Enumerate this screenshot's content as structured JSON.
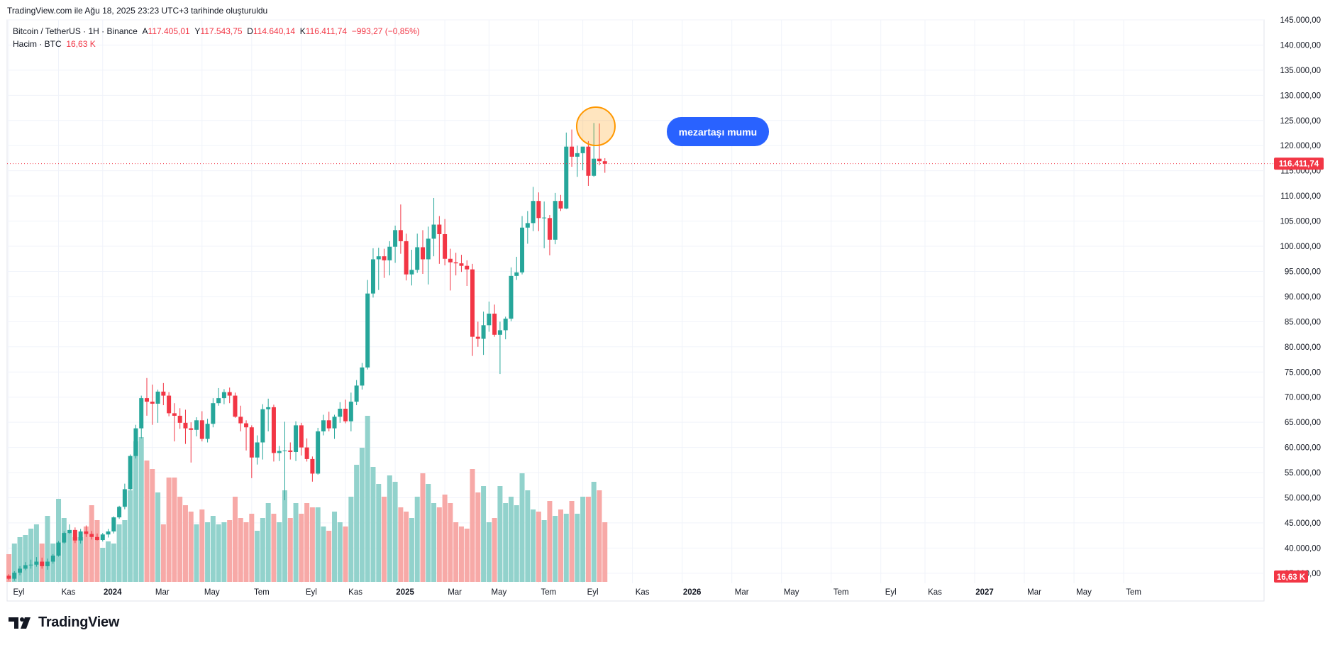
{
  "header": {
    "created_note": "TradingView.com ile Ağu 18, 2025 23:23 UTC+3 tarihinde oluşturuldu"
  },
  "legend": {
    "symbol": "Bitcoin / TetherUS · 1H · Binance",
    "o_label": "A",
    "o_value": "117.405,01",
    "h_label": "Y",
    "h_value": "117.543,75",
    "l_label": "D",
    "l_value": "114.640,14",
    "c_label": "K",
    "c_value": "116.411,74",
    "change": "−993,27 (−0,85%)",
    "volume_label": "Hacim · BTC",
    "volume_value": "16,63 K"
  },
  "annotation": {
    "label": "mezartaşı mumu"
  },
  "price_tag": "116.411,74",
  "volume_tag": "16,63 K",
  "brand": {
    "name": "TradingView"
  },
  "colors": {
    "up": "#26a69a",
    "down": "#f23645",
    "up_volume": "#92d2cc",
    "down_volume": "#f7a9a7",
    "callout": "#2962ff",
    "highlight": "#ff9800"
  },
  "chart_data": {
    "type": "candlestick",
    "price_range": [
      33000,
      145000
    ],
    "y_ticks": [
      "35.000,00",
      "40.000,00",
      "45.000,00",
      "50.000,00",
      "55.000,00",
      "60.000,00",
      "65.000,00",
      "70.000,00",
      "75.000,00",
      "80.000,00",
      "85.000,00",
      "90.000,00",
      "95.000,00",
      "100.000,00",
      "105.000,00",
      "110.000,00",
      "115.000,00",
      "120.000,00",
      "125.000,00",
      "130.000,00",
      "135.000,00",
      "140.000,00",
      "145.000,00"
    ],
    "y_tick_values": [
      35000,
      40000,
      45000,
      50000,
      55000,
      60000,
      65000,
      70000,
      75000,
      80000,
      85000,
      90000,
      95000,
      100000,
      105000,
      110000,
      115000,
      120000,
      125000,
      130000,
      135000,
      140000,
      145000
    ],
    "x_labels": [
      {
        "label": "Eyl",
        "i": 0
      },
      {
        "label": "Kas",
        "i": 9
      },
      {
        "label": "2024",
        "i": 17,
        "bold": true
      },
      {
        "label": "Mar",
        "i": 26
      },
      {
        "label": "May",
        "i": 35
      },
      {
        "label": "Tem",
        "i": 44
      },
      {
        "label": "Eyl",
        "i": 53
      },
      {
        "label": "Kas",
        "i": 61
      },
      {
        "label": "2025",
        "i": 70,
        "bold": true
      },
      {
        "label": "Mar",
        "i": 79
      },
      {
        "label": "May",
        "i": 87
      },
      {
        "label": "Tem",
        "i": 96
      },
      {
        "label": "Eyl",
        "i": 104
      },
      {
        "label": "Kas",
        "i": 113
      },
      {
        "label": "2026",
        "i": 122,
        "bold": true
      },
      {
        "label": "Mar",
        "i": 131
      },
      {
        "label": "May",
        "i": 140
      },
      {
        "label": "Tem",
        "i": 149
      },
      {
        "label": "Eyl",
        "i": 158
      },
      {
        "label": "Kas",
        "i": 166
      },
      {
        "label": "2027",
        "i": 175,
        "bold": true
      },
      {
        "label": "Mar",
        "i": 184
      },
      {
        "label": "May",
        "i": 193
      },
      {
        "label": "Tem",
        "i": 202
      }
    ],
    "last_price": 116411.74,
    "volume_max": 56,
    "candles": [
      [
        34500,
        34800,
        33600,
        33900,
        13
      ],
      [
        33900,
        35400,
        33500,
        35100,
        18
      ],
      [
        35100,
        36400,
        34600,
        35900,
        21
      ],
      [
        35900,
        37200,
        35600,
        36600,
        22
      ],
      [
        36600,
        37700,
        35900,
        36700,
        25
      ],
      [
        36700,
        38200,
        36300,
        37300,
        27
      ],
      [
        37300,
        38100,
        35900,
        36400,
        18
      ],
      [
        36400,
        37900,
        35700,
        37300,
        31
      ],
      [
        37300,
        38800,
        36900,
        38500,
        18
      ],
      [
        38500,
        41400,
        38300,
        41100,
        39
      ],
      [
        41100,
        43300,
        40900,
        43000,
        30
      ],
      [
        43000,
        44700,
        42800,
        43600,
        23
      ],
      [
        43600,
        44100,
        41000,
        41500,
        21
      ],
      [
        41500,
        43800,
        40900,
        43300,
        21
      ],
      [
        43300,
        44500,
        42200,
        42800,
        26
      ],
      [
        42800,
        43400,
        41700,
        42200,
        36
      ],
      [
        42200,
        42900,
        41500,
        41600,
        29
      ],
      [
        41600,
        43000,
        41300,
        42700,
        16
      ],
      [
        42700,
        43800,
        42100,
        43300,
        19
      ],
      [
        43300,
        46300,
        42900,
        46100,
        18
      ],
      [
        46100,
        48400,
        45800,
        48200,
        27
      ],
      [
        48200,
        52800,
        47700,
        51700,
        29
      ],
      [
        51700,
        58600,
        51500,
        58300,
        43
      ],
      [
        58300,
        64500,
        57800,
        63800,
        66
      ],
      [
        63800,
        70300,
        61800,
        69800,
        68
      ],
      [
        69800,
        73800,
        66300,
        69100,
        57
      ],
      [
        69100,
        72500,
        64500,
        68700,
        53
      ],
      [
        68700,
        71500,
        64900,
        71100,
        42
      ],
      [
        71100,
        72800,
        68400,
        70300,
        27
      ],
      [
        70300,
        71000,
        66200,
        66800,
        49
      ],
      [
        66800,
        68800,
        61200,
        66300,
        49
      ],
      [
        66300,
        67800,
        63700,
        64900,
        40
      ],
      [
        64900,
        67500,
        60700,
        63800,
        36
      ],
      [
        63800,
        65000,
        57000,
        63500,
        33
      ],
      [
        63500,
        66000,
        62200,
        65400,
        27
      ],
      [
        65400,
        67200,
        61200,
        61700,
        34
      ],
      [
        61700,
        65700,
        61000,
        64700,
        28
      ],
      [
        64700,
        69800,
        64000,
        68800,
        31
      ],
      [
        68800,
        71800,
        68300,
        69800,
        27
      ],
      [
        69800,
        71600,
        68600,
        71000,
        28
      ],
      [
        71000,
        71900,
        68800,
        70300,
        29
      ],
      [
        70300,
        70900,
        65900,
        66100,
        40
      ],
      [
        66100,
        68300,
        63200,
        64800,
        30
      ],
      [
        64800,
        65400,
        59400,
        64000,
        28
      ],
      [
        64000,
        64400,
        53900,
        58000,
        32
      ],
      [
        58000,
        62400,
        56600,
        61000,
        24
      ],
      [
        61000,
        68600,
        57600,
        67600,
        30
      ],
      [
        67600,
        69700,
        63200,
        68000,
        37
      ],
      [
        68000,
        68500,
        57200,
        58900,
        32
      ],
      [
        58900,
        60300,
        57300,
        59300,
        28
      ],
      [
        59300,
        65100,
        49500,
        59400,
        43
      ],
      [
        59400,
        61000,
        57600,
        59100,
        30
      ],
      [
        59100,
        65200,
        57300,
        64400,
        37
      ],
      [
        64400,
        64900,
        58400,
        60000,
        32
      ],
      [
        60000,
        61800,
        57200,
        57700,
        37
      ],
      [
        57700,
        58200,
        53200,
        54800,
        35
      ],
      [
        54800,
        63900,
        54600,
        63200,
        35
      ],
      [
        63200,
        66500,
        62400,
        65400,
        26
      ],
      [
        65400,
        67100,
        63200,
        63800,
        24
      ],
      [
        63800,
        66500,
        61700,
        66100,
        33
      ],
      [
        66100,
        69000,
        64900,
        67700,
        28
      ],
      [
        67700,
        69500,
        64800,
        65200,
        26
      ],
      [
        65200,
        70900,
        63200,
        69100,
        40
      ],
      [
        69100,
        73400,
        68400,
        72300,
        55
      ],
      [
        72300,
        76800,
        71500,
        75900,
        63
      ],
      [
        75900,
        93300,
        75500,
        90600,
        78
      ],
      [
        90600,
        99600,
        89800,
        97400,
        54
      ],
      [
        97400,
        99700,
        91300,
        98000,
        46
      ],
      [
        98000,
        99500,
        93700,
        97200,
        40
      ],
      [
        97200,
        101000,
        94200,
        99900,
        50
      ],
      [
        99900,
        104100,
        96700,
        103200,
        47
      ],
      [
        103200,
        108300,
        98500,
        101000,
        35
      ],
      [
        101000,
        102500,
        93200,
        94400,
        33
      ],
      [
        94400,
        99300,
        92200,
        95300,
        30
      ],
      [
        95300,
        102500,
        94700,
        99800,
        40
      ],
      [
        99800,
        103200,
        94500,
        97400,
        51
      ],
      [
        97400,
        103900,
        92400,
        101500,
        46
      ],
      [
        101500,
        109600,
        98000,
        104300,
        37
      ],
      [
        104300,
        106000,
        96500,
        102400,
        35
      ],
      [
        102400,
        105400,
        96200,
        97500,
        41
      ],
      [
        97500,
        99500,
        91200,
        96800,
        37
      ],
      [
        96800,
        98700,
        94200,
        96600,
        28
      ],
      [
        96600,
        98300,
        94900,
        96100,
        26
      ],
      [
        96100,
        97200,
        92100,
        95400,
        25
      ],
      [
        95400,
        96500,
        78200,
        82000,
        53
      ],
      [
        82000,
        85000,
        80000,
        81600,
        42
      ],
      [
        81600,
        87000,
        78400,
        84300,
        45
      ],
      [
        84300,
        89000,
        83000,
        86600,
        28
      ],
      [
        86600,
        88400,
        82000,
        82400,
        30
      ],
      [
        82400,
        85000,
        74600,
        83300,
        45
      ],
      [
        83300,
        86000,
        81500,
        85600,
        37
      ],
      [
        85600,
        95800,
        85100,
        94100,
        40
      ],
      [
        94100,
        97900,
        93300,
        94800,
        36
      ],
      [
        94800,
        106000,
        94400,
        103700,
        51
      ],
      [
        103700,
        107000,
        100500,
        104600,
        43
      ],
      [
        104600,
        111800,
        103000,
        109000,
        34
      ],
      [
        109000,
        110700,
        103000,
        105600,
        33
      ],
      [
        105600,
        108900,
        99600,
        105700,
        29
      ],
      [
        105600,
        106200,
        98200,
        101300,
        38
      ],
      [
        101300,
        110600,
        100400,
        109000,
        31
      ],
      [
        109000,
        110200,
        107000,
        107500,
        34
      ],
      [
        107500,
        122600,
        107400,
        119800,
        32
      ],
      [
        119800,
        123200,
        115800,
        117800,
        38
      ],
      [
        117800,
        120000,
        113800,
        118500,
        32
      ],
      [
        118500,
        119700,
        115100,
        119800,
        40
      ],
      [
        119800,
        120900,
        112000,
        114000,
        40
      ],
      [
        114000,
        124500,
        113800,
        117400,
        47
      ],
      [
        117400,
        124400,
        116100,
        116900,
        43
      ],
      [
        116900,
        117500,
        114600,
        116400,
        28
      ]
    ]
  }
}
